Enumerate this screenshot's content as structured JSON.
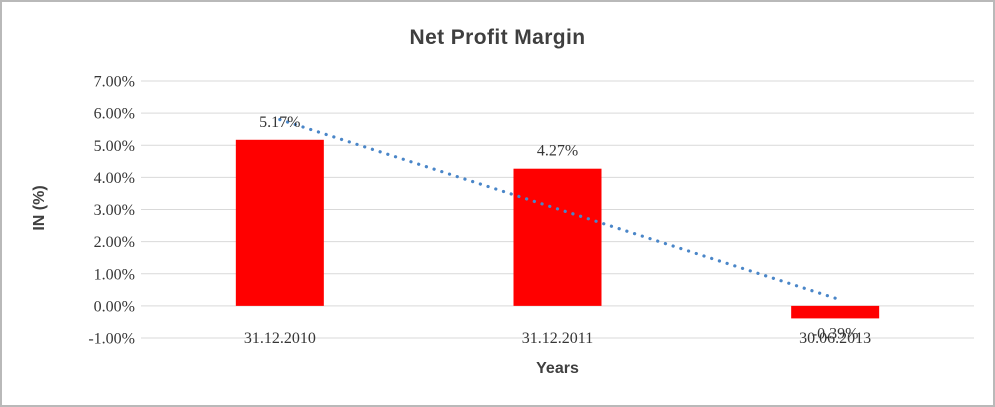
{
  "chart_data": {
    "type": "bar",
    "title": "Net Profit Margin",
    "xlabel": "Years",
    "ylabel": "IN (%)",
    "categories": [
      "31.12.2010",
      "31.12.2011",
      "30.06.2013"
    ],
    "values": [
      5.17,
      4.27,
      -0.39
    ],
    "data_labels": [
      "5.17%",
      "4.27%",
      "-0.39%"
    ],
    "ylim": [
      -1,
      7
    ],
    "ytick_step": 1,
    "ytick_labels": [
      "7.00%",
      "6.00%",
      "5.00%",
      "4.00%",
      "3.00%",
      "2.00%",
      "1.00%",
      "0.00%",
      "-1.00%"
    ],
    "grid": true,
    "legend": "none",
    "bar_color": "#ff0000",
    "grid_color": "#d9d9d9",
    "text_color": "#363636",
    "trendline": {
      "type": "linear",
      "style": "dotted",
      "color": "#4a86c8",
      "start_value": 5.8,
      "end_value": 0.24
    }
  }
}
